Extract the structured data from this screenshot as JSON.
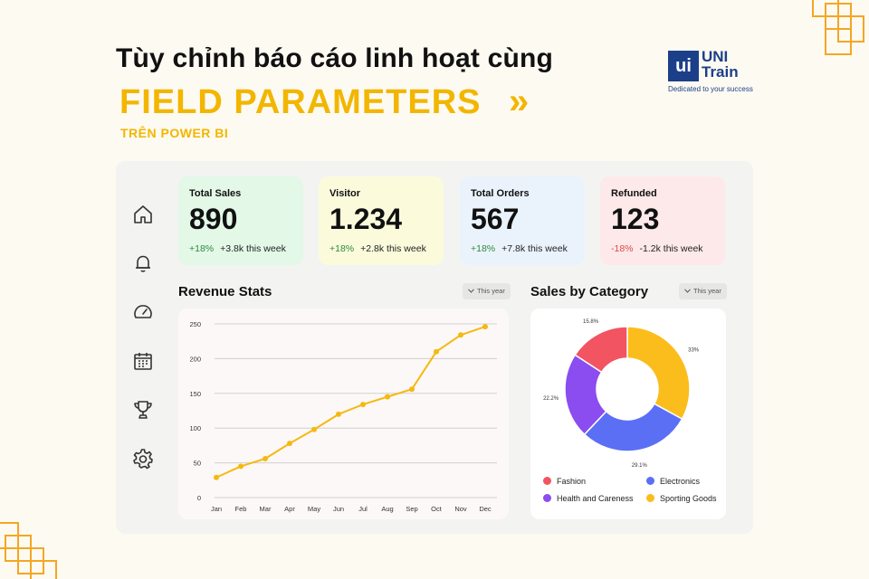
{
  "header": {
    "headline": "Tùy chỉnh báo cáo linh hoạt cùng",
    "title": "FIELD PARAMETERS",
    "chevrons": "»",
    "subtitle": "TRÊN POWER BI"
  },
  "logo": {
    "mark": "ui",
    "name_line1": "UNI",
    "name_line2": "Train",
    "tagline": "Dedicated to your success",
    "brand_color": "#1c3f8a"
  },
  "sidebar": {
    "icons": [
      "home-icon",
      "bell-icon",
      "gauge-icon",
      "calendar-icon",
      "trophy-icon",
      "gear-icon"
    ]
  },
  "cards": [
    {
      "label": "Total Sales",
      "value": "890",
      "change": "+18%",
      "note": "+3.8k this week",
      "trend": "up",
      "bg": "#e3f8e7"
    },
    {
      "label": "Visitor",
      "value": "1.234",
      "change": "+18%",
      "note": "+2.8k this week",
      "trend": "up",
      "bg": "#fbfbdc"
    },
    {
      "label": "Total Orders",
      "value": "567",
      "change": "+18%",
      "note": "+7.8k this week",
      "trend": "up",
      "bg": "#eaf3fc"
    },
    {
      "label": "Refunded",
      "value": "123",
      "change": "-18%",
      "note": "-1.2k this week",
      "trend": "down",
      "bg": "#fde9e9"
    }
  ],
  "revenue": {
    "title": "Revenue Stats",
    "filter": "This year"
  },
  "category": {
    "title": "Sales by Category",
    "filter": "This year",
    "legend": [
      {
        "label": "Fashion",
        "color": "#f25461"
      },
      {
        "label": "Electronics",
        "color": "#5b6ff5"
      },
      {
        "label": "Health and Careness",
        "color": "#8b4cf0"
      },
      {
        "label": "Sporting Goods",
        "color": "#fbbd1c"
      }
    ]
  },
  "colors": {
    "accent": "#f2b600",
    "line": "#f5b90f"
  },
  "chart_data": [
    {
      "type": "line",
      "title": "",
      "x": [
        "Jan",
        "Feb",
        "Mar",
        "Apr",
        "May",
        "Jun",
        "Jul",
        "Aug",
        "Sep",
        "Oct",
        "Nov",
        "Dec"
      ],
      "series": [
        {
          "values": [
            29,
            45,
            56,
            78,
            98,
            120,
            134,
            145,
            156,
            210,
            234,
            246
          ]
        }
      ],
      "yticks": [
        0,
        50,
        100,
        150,
        200,
        250
      ],
      "ylim": [
        0,
        250
      ],
      "grid": true,
      "xlabel": "",
      "ylabel": ""
    },
    {
      "type": "pie",
      "donut": true,
      "categories": [
        "Sporting Goods",
        "Electronics",
        "Health and Careness",
        "Fashion"
      ],
      "values": [
        33.0,
        29.1,
        22.2,
        15.8
      ],
      "labels": [
        "33%",
        "29.1%",
        "22.2%",
        "15.8%"
      ],
      "colors": [
        "#fbbd1c",
        "#5b6ff5",
        "#8b4cf0",
        "#f25461"
      ],
      "legend_position": "bottom"
    }
  ]
}
